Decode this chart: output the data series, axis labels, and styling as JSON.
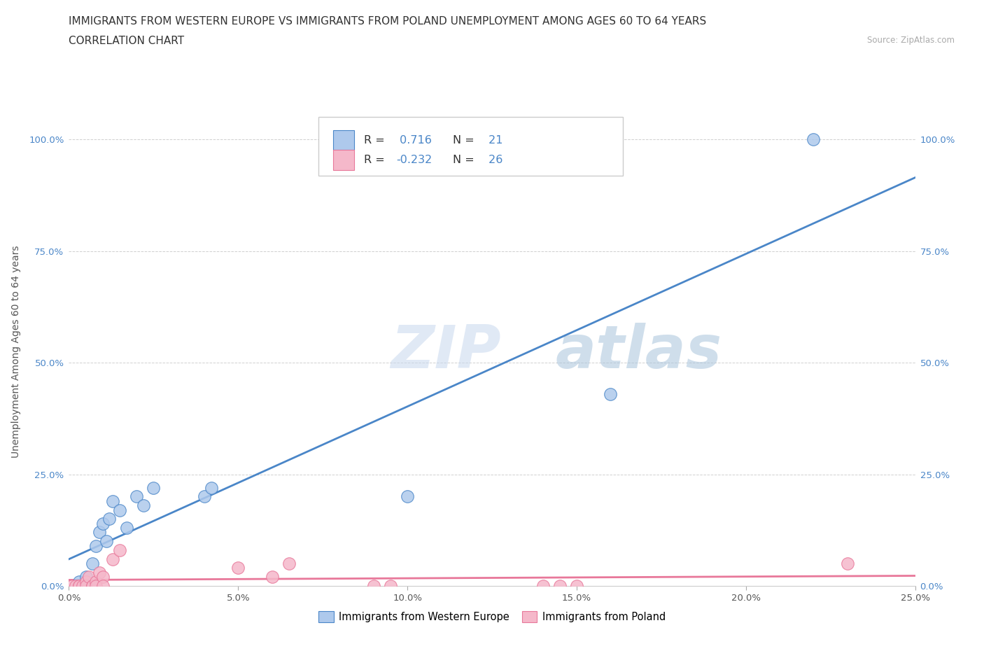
{
  "title_line1": "IMMIGRANTS FROM WESTERN EUROPE VS IMMIGRANTS FROM POLAND UNEMPLOYMENT AMONG AGES 60 TO 64 YEARS",
  "title_line2": "CORRELATION CHART",
  "source_text": "Source: ZipAtlas.com",
  "ylabel": "Unemployment Among Ages 60 to 64 years",
  "watermark_zip": "ZIP",
  "watermark_atlas": "atlas",
  "western_europe_R": 0.716,
  "western_europe_N": 21,
  "poland_R": -0.232,
  "poland_N": 26,
  "xlim": [
    0.0,
    0.25
  ],
  "ylim": [
    0.0,
    1.05
  ],
  "xtick_labels": [
    "0.0%",
    "5.0%",
    "10.0%",
    "15.0%",
    "20.0%",
    "25.0%"
  ],
  "xtick_values": [
    0.0,
    0.05,
    0.1,
    0.15,
    0.2,
    0.25
  ],
  "ytick_labels": [
    "0.0%",
    "25.0%",
    "50.0%",
    "75.0%",
    "100.0%"
  ],
  "ytick_values": [
    0.0,
    0.25,
    0.5,
    0.75,
    1.0
  ],
  "western_europe_color": "#aec9ec",
  "poland_color": "#f5b8ca",
  "regression_western_color": "#4a86c8",
  "regression_poland_color": "#e8789a",
  "background_color": "#ffffff",
  "grid_color": "#d0d0d0",
  "western_europe_x": [
    0.003,
    0.004,
    0.005,
    0.006,
    0.007,
    0.008,
    0.009,
    0.01,
    0.011,
    0.012,
    0.013,
    0.015,
    0.017,
    0.02,
    0.022,
    0.025,
    0.04,
    0.042,
    0.1,
    0.16,
    0.22
  ],
  "western_europe_y": [
    0.01,
    0.0,
    0.02,
    0.0,
    0.05,
    0.09,
    0.12,
    0.14,
    0.1,
    0.15,
    0.19,
    0.17,
    0.13,
    0.2,
    0.18,
    0.22,
    0.2,
    0.22,
    0.2,
    0.43,
    1.0
  ],
  "poland_x": [
    0.001,
    0.002,
    0.003,
    0.003,
    0.004,
    0.005,
    0.005,
    0.006,
    0.007,
    0.007,
    0.008,
    0.008,
    0.009,
    0.01,
    0.01,
    0.013,
    0.015,
    0.05,
    0.06,
    0.065,
    0.09,
    0.095,
    0.14,
    0.145,
    0.15,
    0.23
  ],
  "poland_y": [
    0.0,
    0.0,
    0.0,
    0.0,
    0.0,
    0.01,
    0.0,
    0.02,
    0.0,
    0.0,
    0.01,
    0.0,
    0.03,
    0.02,
    0.0,
    0.06,
    0.08,
    0.04,
    0.02,
    0.05,
    0.0,
    0.0,
    0.0,
    0.0,
    0.0,
    0.05
  ],
  "legend_text_color": "#4a86c8",
  "legend_label_color": "#333333",
  "tick_fontsize": 9.5,
  "axis_label_fontsize": 10,
  "title_fontsize": 11,
  "scatter_size": 160
}
